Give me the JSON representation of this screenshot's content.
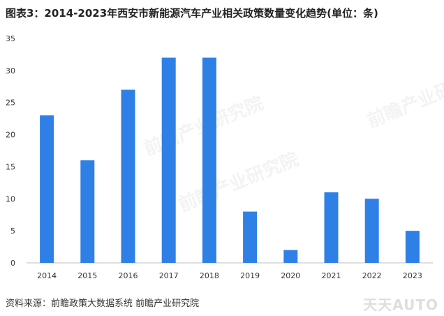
{
  "title": "图表3：2014-2023年西安市新能源汽车产业相关政策数量变化趋势(单位：条)",
  "source": "资料来源：前瞻政策大数据系统 前瞻产业研究院",
  "watermark": "前瞻产业研究院",
  "logo_watermark": "天天AUTO",
  "colors": {
    "bar": "#2f80e6",
    "axis": "#bfbfbf",
    "tick_text": "#333333"
  },
  "chart_data": {
    "type": "bar",
    "categories": [
      "2014",
      "2015",
      "2016",
      "2017",
      "2018",
      "2019",
      "2020",
      "2021",
      "2022",
      "2023"
    ],
    "values": [
      23,
      16,
      27,
      32,
      32,
      8,
      2,
      11,
      10,
      5
    ],
    "yticks": [
      "0",
      "5",
      "10",
      "15",
      "20",
      "25",
      "30",
      "35"
    ],
    "ylim": [
      0,
      35
    ],
    "grid": false,
    "legend": "none"
  }
}
